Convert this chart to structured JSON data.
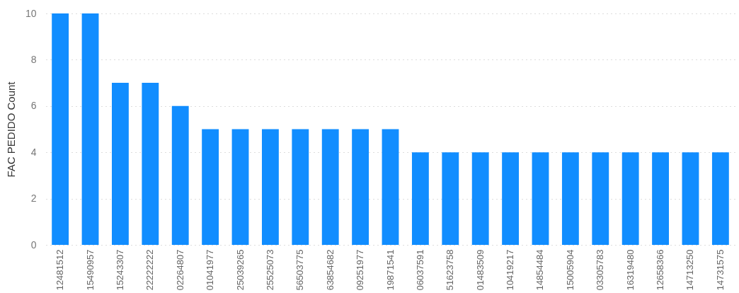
{
  "chart_data": {
    "type": "bar",
    "ylabel": "FAC PEDIDO Count",
    "categories": [
      "12481512",
      "15490957",
      "15243307",
      "22222222",
      "02264807",
      "01041977",
      "25039265",
      "25525073",
      "56503775",
      "63854682",
      "09251977",
      "19871541",
      "06037591",
      "51623758",
      "01483509",
      "10419217",
      "14854484",
      "15005904",
      "03305783",
      "16319480",
      "12658366",
      "14713250",
      "14731575"
    ],
    "values": [
      10,
      10,
      7,
      7,
      6,
      5,
      5,
      5,
      5,
      5,
      5,
      5,
      4,
      4,
      4,
      4,
      4,
      4,
      4,
      4,
      4,
      4,
      4
    ],
    "color": "#118dff",
    "ylim": [
      0,
      10
    ],
    "yticks": [
      0,
      2,
      4,
      6,
      8,
      10
    ],
    "grid": "y"
  }
}
